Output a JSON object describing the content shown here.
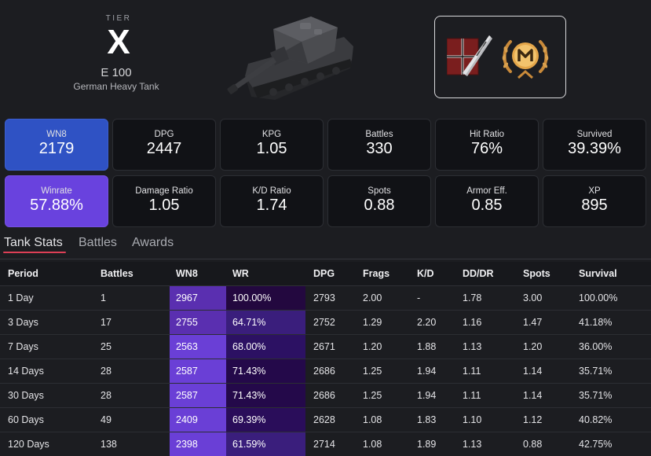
{
  "tank": {
    "tier_label": "TIER",
    "tier": "X",
    "name": "E 100",
    "type": "German Heavy Tank"
  },
  "icons": {
    "tank_image": "tank-image",
    "medal_1": "german-flag-barrel-medal-icon",
    "medal_2": "mastery-badge-m-icon"
  },
  "stats": [
    {
      "label": "WN8",
      "value": "2179"
    },
    {
      "label": "DPG",
      "value": "2447"
    },
    {
      "label": "KPG",
      "value": "1.05"
    },
    {
      "label": "Battles",
      "value": "330"
    },
    {
      "label": "Hit Ratio",
      "value": "76%"
    },
    {
      "label": "Survived",
      "value": "39.39%"
    },
    {
      "label": "Winrate",
      "value": "57.88%"
    },
    {
      "label": "Damage Ratio",
      "value": "1.05"
    },
    {
      "label": "K/D Ratio",
      "value": "1.74"
    },
    {
      "label": "Spots",
      "value": "0.88"
    },
    {
      "label": "Armor Eff.",
      "value": "0.85"
    },
    {
      "label": "XP",
      "value": "895"
    }
  ],
  "tabs": [
    "Tank Stats",
    "Battles",
    "Awards"
  ],
  "table": {
    "headers": [
      "Period",
      "Battles",
      "WN8",
      "WR",
      "DPG",
      "Frags",
      "K/D",
      "DD/DR",
      "Spots",
      "Survival"
    ],
    "rows": [
      [
        "1 Day",
        "1",
        "2967",
        "100.00%",
        "2793",
        "2.00",
        "-",
        "1.78",
        "3.00",
        "100.00%"
      ],
      [
        "3 Days",
        "17",
        "2755",
        "64.71%",
        "2752",
        "1.29",
        "2.20",
        "1.16",
        "1.47",
        "41.18%"
      ],
      [
        "7 Days",
        "25",
        "2563",
        "68.00%",
        "2671",
        "1.20",
        "1.88",
        "1.13",
        "1.20",
        "36.00%"
      ],
      [
        "14 Days",
        "28",
        "2587",
        "71.43%",
        "2686",
        "1.25",
        "1.94",
        "1.11",
        "1.14",
        "35.71%"
      ],
      [
        "30 Days",
        "28",
        "2587",
        "71.43%",
        "2686",
        "1.25",
        "1.94",
        "1.11",
        "1.14",
        "35.71%"
      ],
      [
        "60 Days",
        "49",
        "2409",
        "69.39%",
        "2628",
        "1.08",
        "1.83",
        "1.10",
        "1.12",
        "40.82%"
      ],
      [
        "120 Days",
        "138",
        "2398",
        "61.59%",
        "2714",
        "1.08",
        "1.89",
        "1.13",
        "0.88",
        "42.75%"
      ]
    ],
    "wn8_colors": [
      "#5a2fb0",
      "#5a2fb0",
      "#6a3fd6",
      "#6a3fd6",
      "#6a3fd6",
      "#6a3fd6",
      "#6a3fd6"
    ],
    "wr_colors": [
      "#23083f",
      "#3a1e7c",
      "#2c1163",
      "#24094a",
      "#24094a",
      "#2a0d5a",
      "#3a1e7c"
    ]
  },
  "colors": {
    "wn8_card": "#2f52c4",
    "winrate_card": "#6942de",
    "tab_underline": "#dd3f56"
  }
}
